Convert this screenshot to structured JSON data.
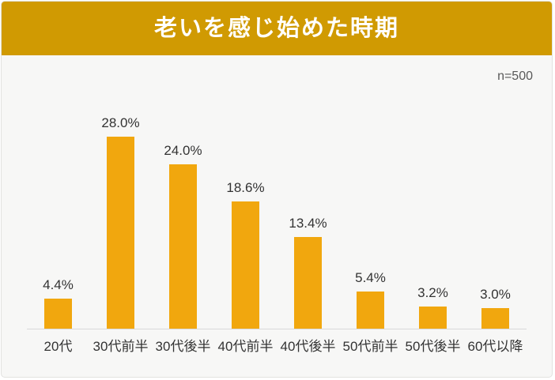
{
  "header": {
    "title": "老いを感じ始めた時期"
  },
  "sample_label": "n=500",
  "colors": {
    "header_bg": "#D09A02",
    "bar": "#F1A70E",
    "background": "#F7F7F6",
    "axis": "#D9D9D9",
    "title_text": "#FFFFFF",
    "value_text": "#333333",
    "category_text": "#333333",
    "sample_text": "#595959"
  },
  "chart_data": {
    "type": "bar",
    "title": "老いを感じ始めた時期",
    "categories": [
      "20代",
      "30代前半",
      "30代後半",
      "40代前半",
      "40代後半",
      "50代前半",
      "50代後半",
      "60代以降"
    ],
    "values": [
      4.4,
      28.0,
      24.0,
      18.6,
      13.4,
      5.4,
      3.2,
      3.0
    ],
    "value_labels": [
      "4.4%",
      "28.0%",
      "24.0%",
      "18.6%",
      "13.4%",
      "5.4%",
      "3.2%",
      "3.0%"
    ],
    "annotation": "n=500",
    "xlabel": "",
    "ylabel": "",
    "ylim": [
      0,
      30
    ],
    "grid": false,
    "legend": "none",
    "bar_color": "#F1A70E"
  }
}
